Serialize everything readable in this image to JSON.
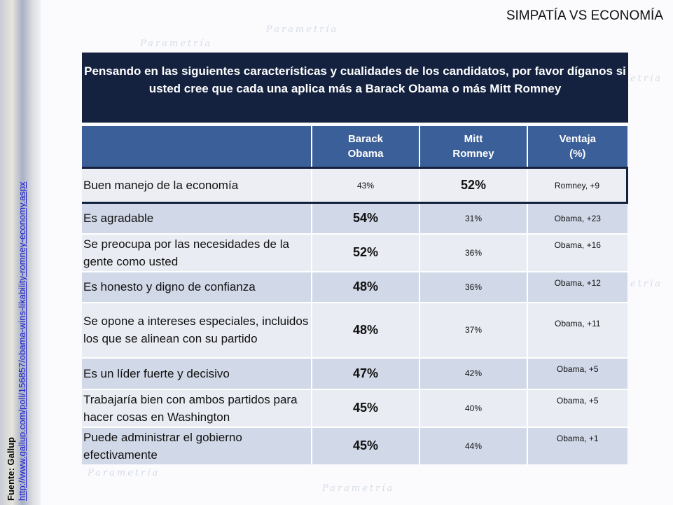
{
  "slide_title": "SIMPATÍA VS ECONOMÍA",
  "question": "Pensando en las siguientes características y cualidades de los candidatos, por favor díganos si usted cree que cada una aplica más a Barack Obama o más Mitt Romney",
  "source": {
    "label": "Fuente: Gallup",
    "url": "http://www.gallup.com/poll/156857/obama-wins-likability-romney-economy.aspx"
  },
  "headers": {
    "obama_1": "Barack",
    "obama_2": "Obama",
    "romney_1": "Mitt",
    "romney_2": "Romney",
    "adv_1": "Ventaja",
    "adv_2": "(%)"
  },
  "rows": [
    {
      "label": "Buen manejo de la economía",
      "obama": "43%",
      "romney": "52%",
      "advantage": "Romney, +9"
    },
    {
      "label": "Es agradable",
      "obama": "54%",
      "romney": "31%",
      "advantage": "Obama, +23"
    },
    {
      "label": "Se preocupa por las necesidades de la gente como usted",
      "obama": "52%",
      "romney": "36%",
      "advantage": "Obama, +16"
    },
    {
      "label": "Es honesto y digno de confianza",
      "obama": "48%",
      "romney": "36%",
      "advantage": "Obama, +12"
    },
    {
      "label": "Se opone a intereses especiales, incluidos los que se alinean con su partido",
      "obama": "48%",
      "romney": "37%",
      "advantage": "Obama, +11"
    },
    {
      "label": "Es un líder fuerte y decisivo",
      "obama": "47%",
      "romney": "42%",
      "advantage": "Obama, +5"
    },
    {
      "label": "Trabajaría bien con ambos partidos para hacer  cosas en Washington",
      "obama": "45%",
      "romney": "40%",
      "advantage": "Obama, +5"
    },
    {
      "label": "Puede administrar el gobierno efectivamente",
      "obama": "45%",
      "romney": "44%",
      "advantage": "Obama, +1"
    }
  ]
}
